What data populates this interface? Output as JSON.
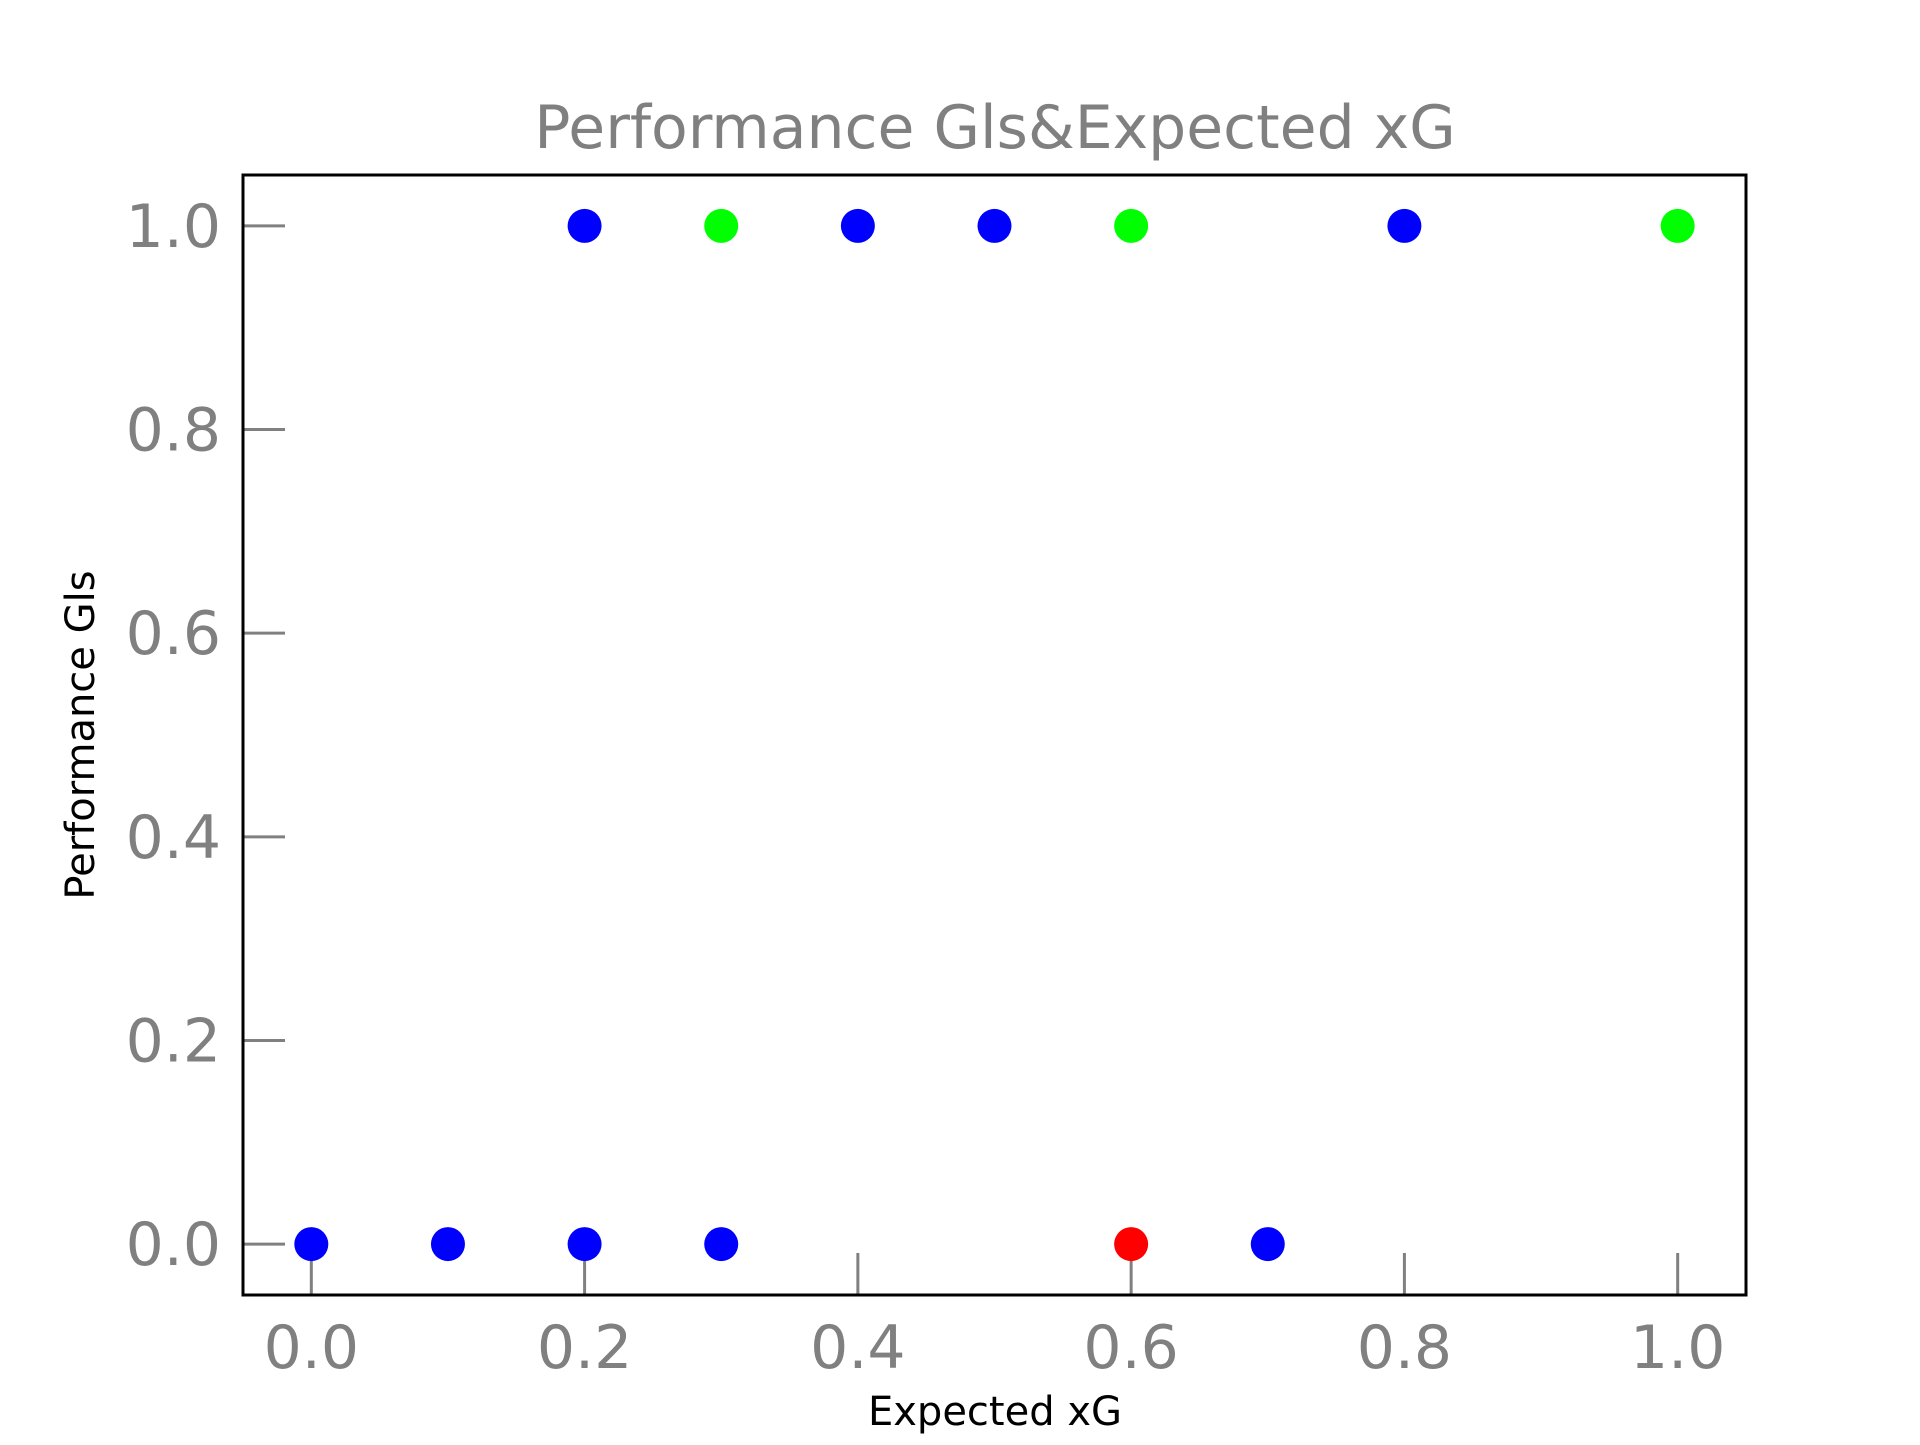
{
  "chart_data": {
    "type": "scatter",
    "title": "Performance Gls&Expected xG",
    "xlabel": "Expected xG",
    "ylabel": "Performance Gls",
    "xlim": [
      -0.05,
      1.05
    ],
    "ylim": [
      -0.05,
      1.05
    ],
    "xticks": [
      0.0,
      0.2,
      0.4,
      0.6,
      0.8,
      1.0
    ],
    "yticks": [
      0.0,
      0.2,
      0.4,
      0.6,
      0.8,
      1.0
    ],
    "xtick_labels": [
      "0.0",
      "0.2",
      "0.4",
      "0.6",
      "0.8",
      "1.0"
    ],
    "ytick_labels": [
      "0.0",
      "0.2",
      "0.4",
      "0.6",
      "0.8",
      "1.0"
    ],
    "grid": false,
    "tick_direction": "in",
    "colors": {
      "blue": "#0000ff",
      "green": "#00ff00",
      "red": "#ff0000",
      "tick": "#808080"
    },
    "points": [
      {
        "x": 0.2,
        "y": 1.0,
        "color": "#0000ff"
      },
      {
        "x": 0.3,
        "y": 1.0,
        "color": "#00ff00"
      },
      {
        "x": 0.4,
        "y": 1.0,
        "color": "#0000ff"
      },
      {
        "x": 0.5,
        "y": 1.0,
        "color": "#0000ff"
      },
      {
        "x": 0.6,
        "y": 1.0,
        "color": "#00ff00"
      },
      {
        "x": 0.8,
        "y": 1.0,
        "color": "#0000ff"
      },
      {
        "x": 1.0,
        "y": 1.0,
        "color": "#00ff00"
      },
      {
        "x": 0.0,
        "y": 0.0,
        "color": "#0000ff"
      },
      {
        "x": 0.1,
        "y": 0.0,
        "color": "#0000ff"
      },
      {
        "x": 0.2,
        "y": 0.0,
        "color": "#0000ff"
      },
      {
        "x": 0.3,
        "y": 0.0,
        "color": "#0000ff"
      },
      {
        "x": 0.6,
        "y": 0.0,
        "color": "#ff0000"
      },
      {
        "x": 0.7,
        "y": 0.0,
        "color": "#0000ff"
      }
    ]
  }
}
